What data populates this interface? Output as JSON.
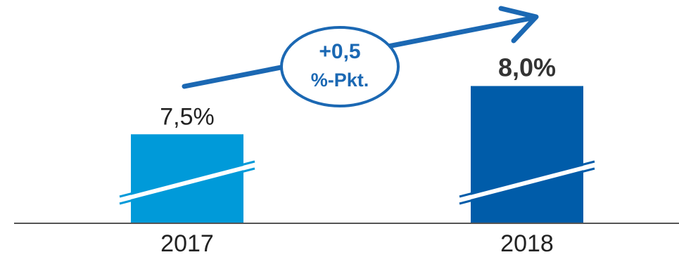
{
  "chart_data": {
    "type": "bar",
    "categories": [
      "2017",
      "2018"
    ],
    "values": [
      7.5,
      8.0
    ],
    "value_labels": [
      "7,5%",
      "8,0%"
    ],
    "bar_colors": [
      "#009ad9",
      "#005ca9"
    ],
    "highlight_index": 1,
    "axis_break": true,
    "grid": false,
    "legend": "none",
    "ylim": [
      7.0,
      8.2
    ],
    "change_annotation": {
      "line1": "+0,5",
      "line2": "%-Pkt.",
      "color": "#1b68b3"
    },
    "colors": {
      "axis": "#555555",
      "text": "#222222",
      "label_bold": "#333333"
    }
  }
}
